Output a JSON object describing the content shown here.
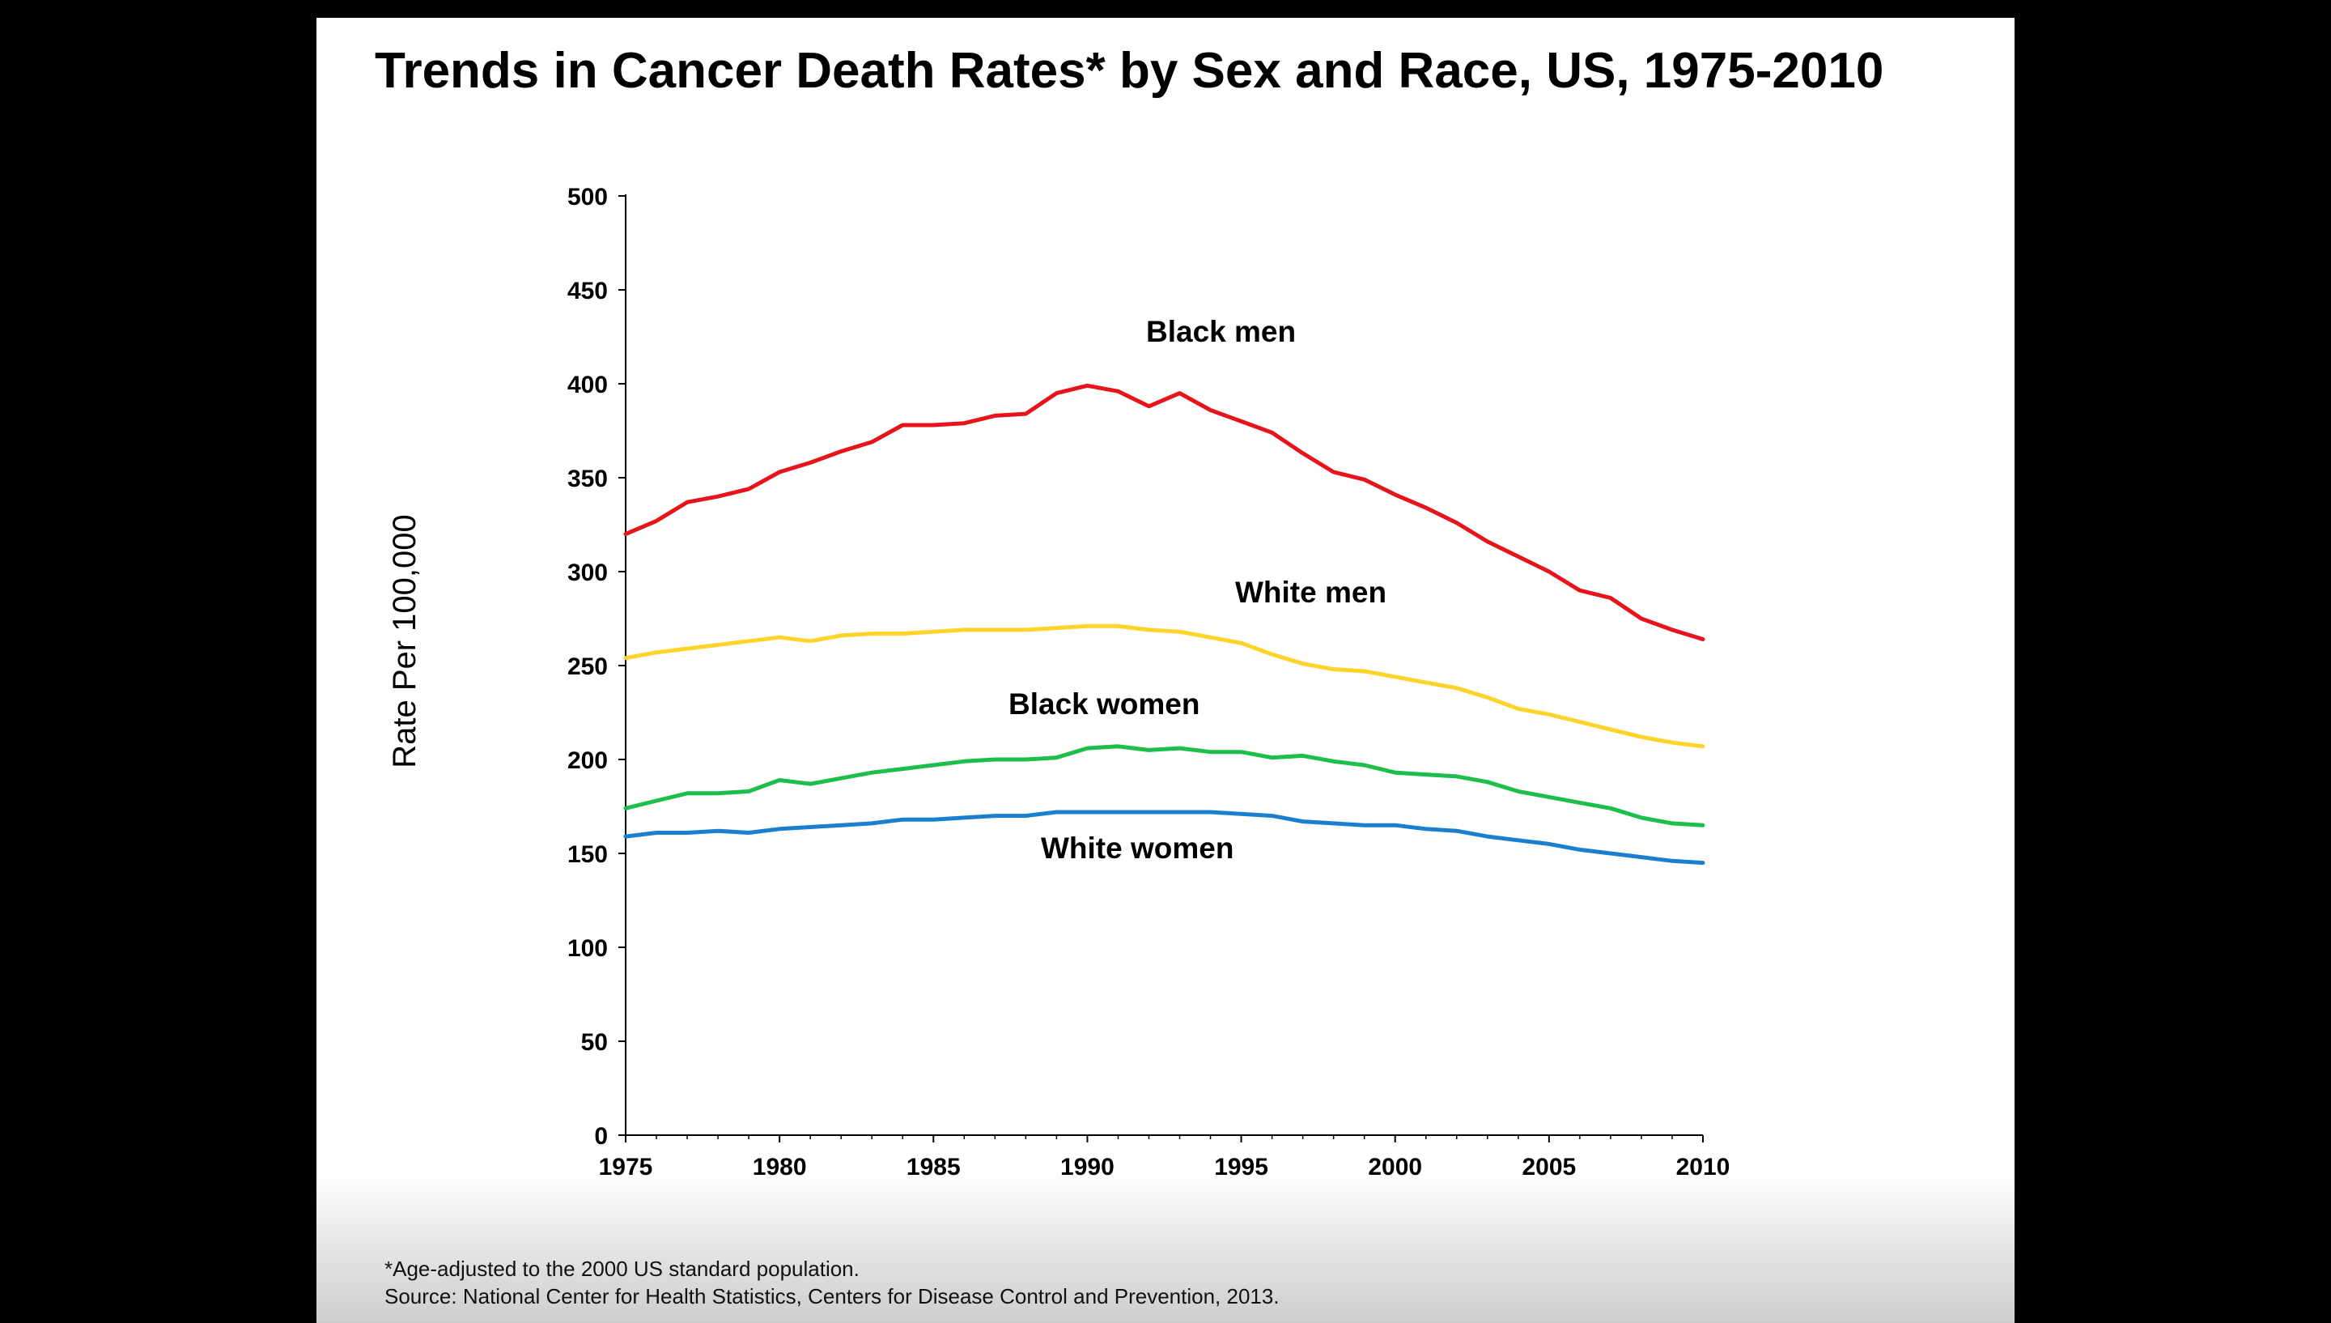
{
  "slide": {
    "title": "Trends in Cancer Death Rates* by Sex and Race, US, 1975-2010",
    "footnote": "*Age-adjusted to the 2000 US standard population.",
    "source": "Source: National Center for Health Statistics, Centers for Disease Control and Prevention, 2013."
  },
  "chart_data": {
    "type": "line",
    "title": "Trends in Cancer Death Rates* by Sex and Race, US, 1975-2010",
    "xlabel": "",
    "ylabel": "Rate Per 100,000",
    "xlim": [
      1975,
      2010
    ],
    "ylim": [
      0,
      500
    ],
    "x_ticks": [
      1975,
      1980,
      1985,
      1990,
      1995,
      2000,
      2005,
      2010
    ],
    "y_ticks": [
      0,
      50,
      100,
      150,
      200,
      250,
      300,
      350,
      400,
      450,
      500
    ],
    "grid": false,
    "legend": "inline labels",
    "x": [
      1975,
      1976,
      1977,
      1978,
      1979,
      1980,
      1981,
      1982,
      1983,
      1984,
      1985,
      1986,
      1987,
      1988,
      1989,
      1990,
      1991,
      1992,
      1993,
      1994,
      1995,
      1996,
      1997,
      1998,
      1999,
      2000,
      2001,
      2002,
      2003,
      2004,
      2005,
      2006,
      2007,
      2008,
      2009,
      2010
    ],
    "series": [
      {
        "name": "Black men",
        "color": "#e8141c",
        "values": [
          320,
          327,
          337,
          340,
          344,
          353,
          358,
          364,
          369,
          378,
          378,
          379,
          383,
          384,
          395,
          399,
          396,
          388,
          395,
          386,
          380,
          374,
          363,
          353,
          349,
          341,
          334,
          326,
          316,
          308,
          300,
          290,
          286,
          275,
          269,
          264
        ]
      },
      {
        "name": "White men",
        "color": "#ffd42a",
        "values": [
          254,
          257,
          259,
          261,
          263,
          265,
          263,
          266,
          267,
          267,
          268,
          269,
          269,
          269,
          270,
          271,
          271,
          269,
          268,
          265,
          262,
          256,
          251,
          248,
          247,
          244,
          241,
          238,
          233,
          227,
          224,
          220,
          216,
          212,
          209,
          207
        ]
      },
      {
        "name": "Black women",
        "color": "#1ebe4b",
        "values": [
          174,
          178,
          182,
          182,
          183,
          189,
          187,
          190,
          193,
          195,
          197,
          199,
          200,
          200,
          201,
          206,
          207,
          205,
          206,
          204,
          204,
          201,
          202,
          199,
          197,
          193,
          192,
          191,
          188,
          183,
          180,
          177,
          174,
          169,
          166,
          165
        ]
      },
      {
        "name": "White women",
        "color": "#1b7fd0",
        "values": [
          159,
          161,
          161,
          162,
          161,
          163,
          164,
          165,
          166,
          168,
          168,
          169,
          170,
          170,
          172,
          172,
          172,
          172,
          172,
          172,
          171,
          170,
          167,
          166,
          165,
          165,
          163,
          162,
          159,
          157,
          155,
          152,
          150,
          148,
          146,
          145
        ]
      }
    ]
  }
}
